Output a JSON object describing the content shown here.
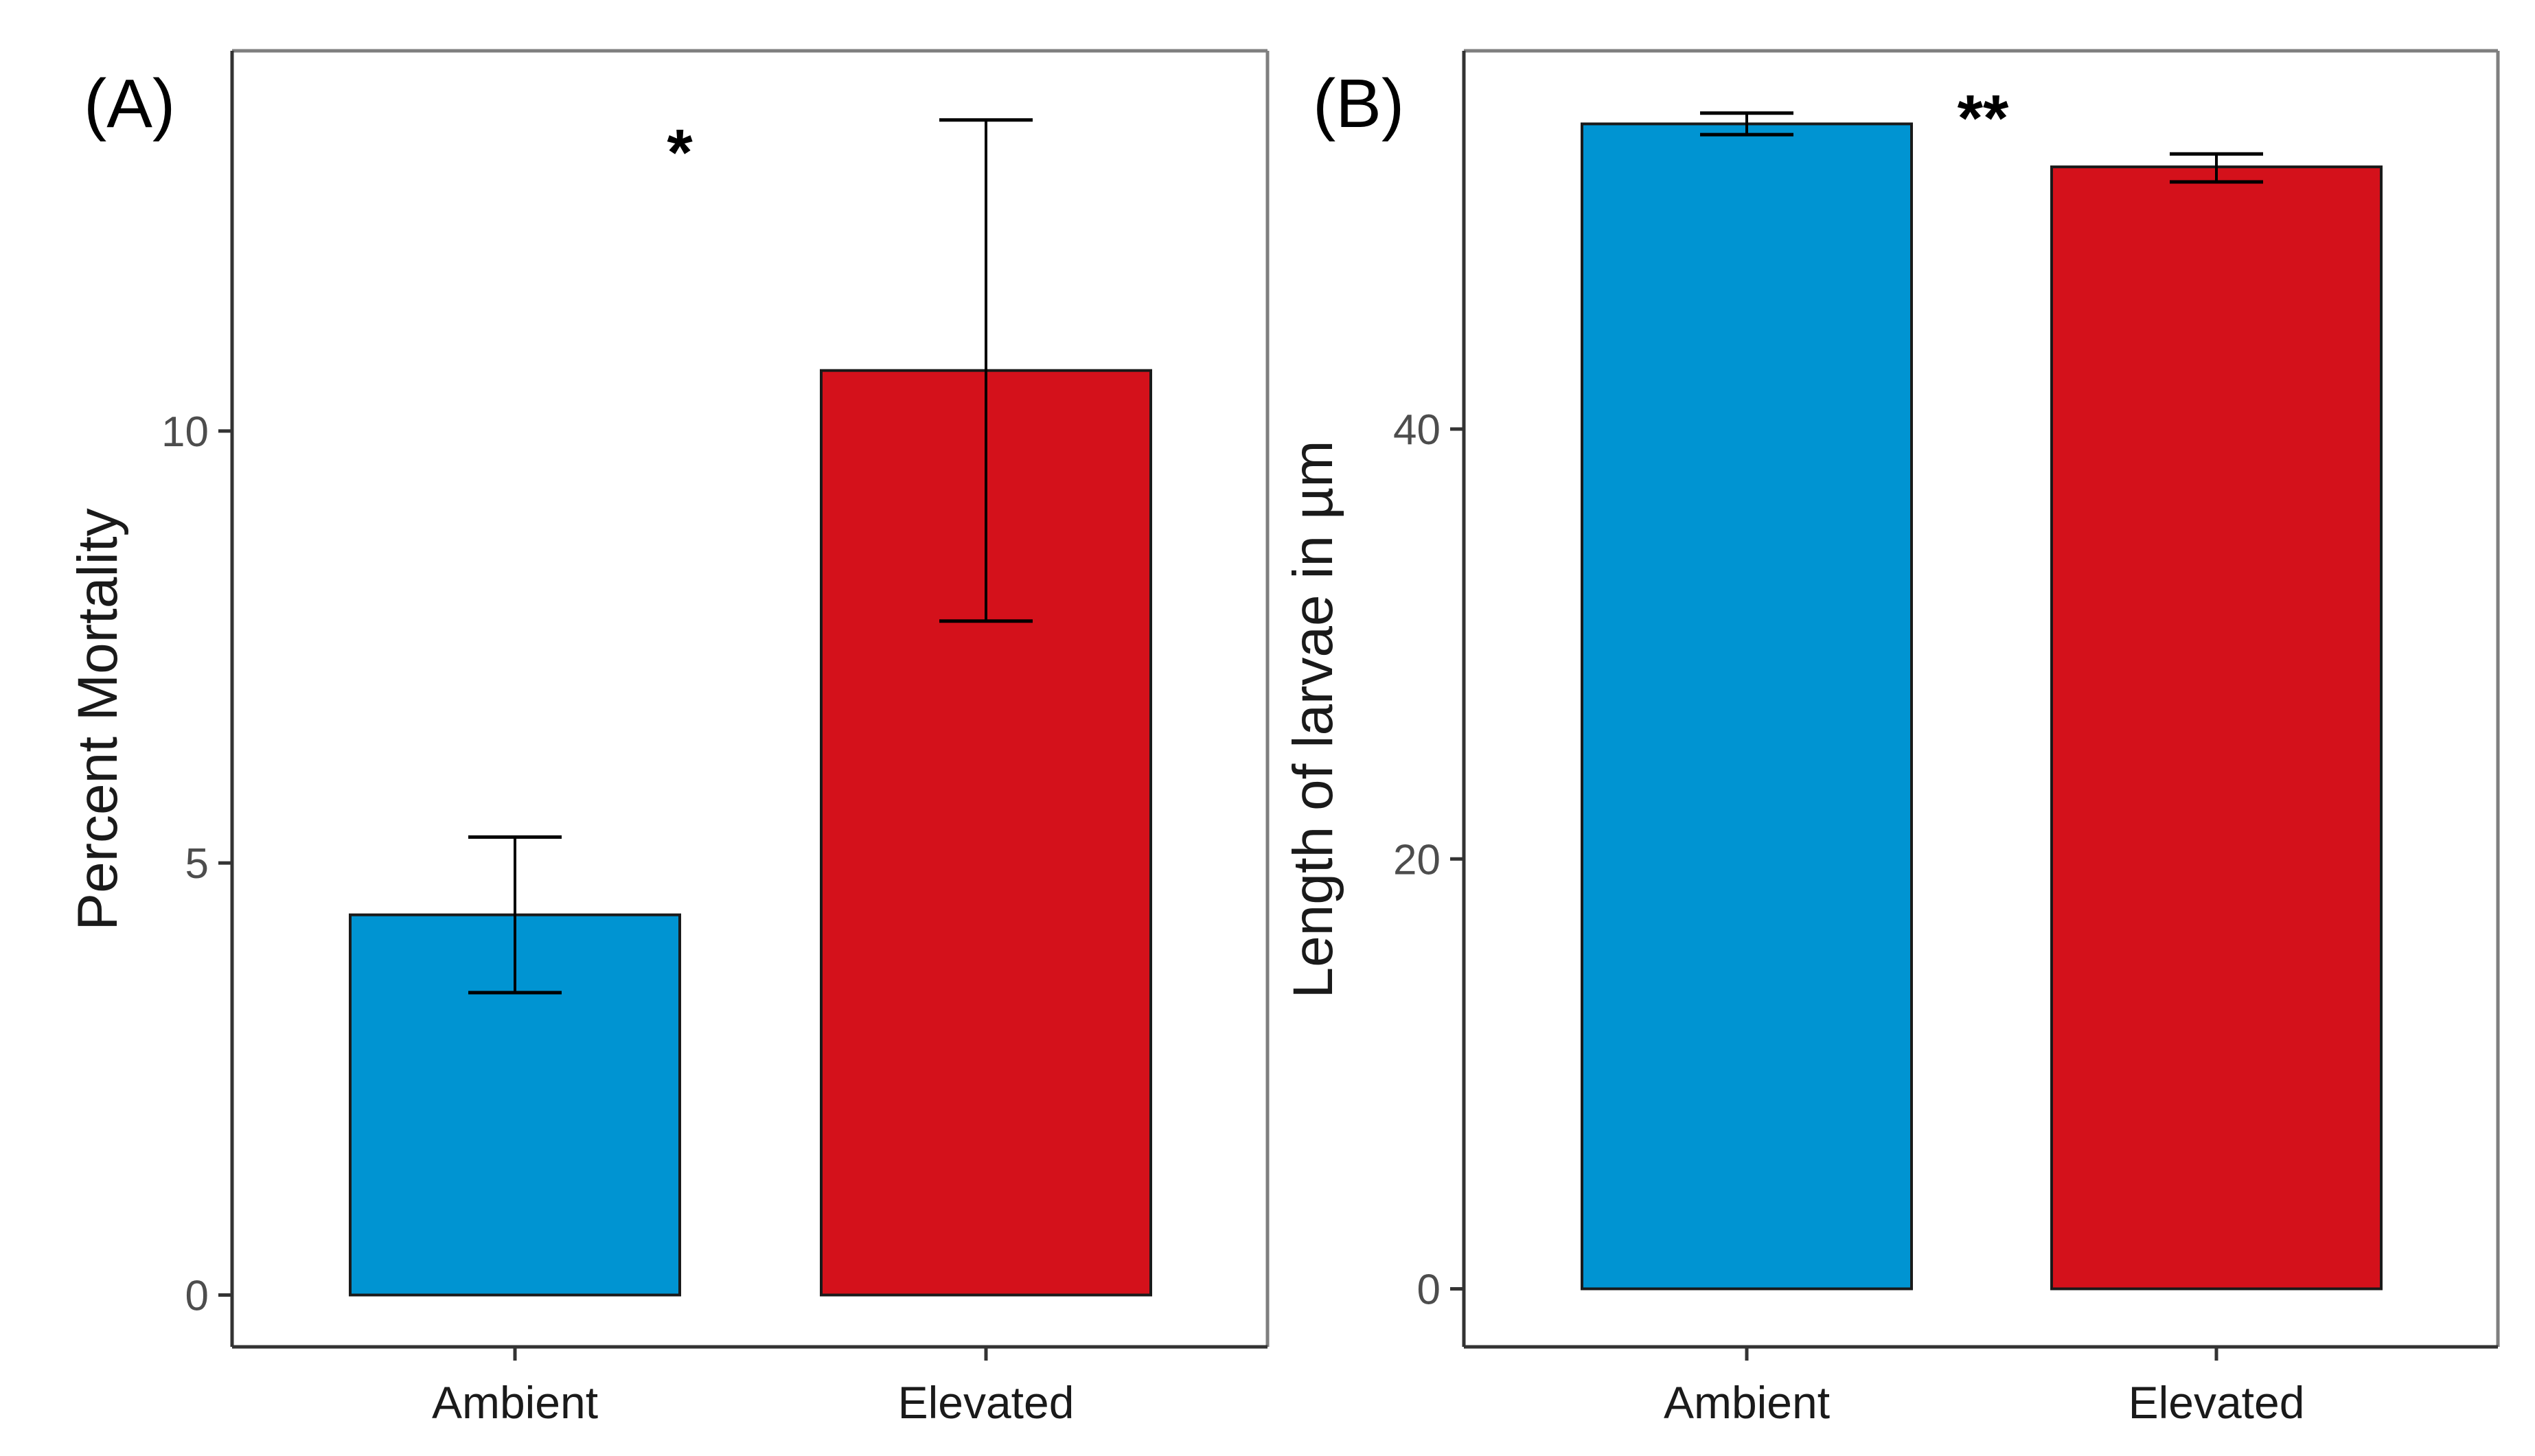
{
  "figure": {
    "background": "#ffffff"
  },
  "colors": {
    "ambient": "#0094d2",
    "elevated": "#d4111b",
    "frame": "#7f7f7f",
    "axis": "#333333",
    "tick_text": "#4d4d4d",
    "bar_outline": "#1a1a1a",
    "error_bar": "#000000"
  },
  "chart_data": [
    {
      "type": "bar",
      "panel_label": "(A)",
      "title": "",
      "xlabel": "",
      "ylabel": "Percent Mortality",
      "categories": [
        "Ambient",
        "Elevated"
      ],
      "values": [
        4.4,
        10.7
      ],
      "error_low": [
        3.5,
        7.8
      ],
      "error_high": [
        5.3,
        13.6
      ],
      "ylim": [
        -0.6,
        14.4
      ],
      "yticks": [
        0,
        5,
        10
      ],
      "ytick_labels": [
        "0",
        "5",
        "10"
      ],
      "grid": false,
      "significance": "*",
      "significance_position": "between bars, near top"
    },
    {
      "type": "bar",
      "panel_label": "(B)",
      "title": "",
      "xlabel": "",
      "ylabel": "Length of larvae in µm",
      "categories": [
        "Ambient",
        "Elevated"
      ],
      "values": [
        54.2,
        52.2
      ],
      "error_low": [
        53.7,
        51.5
      ],
      "error_high": [
        54.7,
        52.8
      ],
      "ylim": [
        -2.7,
        57.6
      ],
      "yticks": [
        0,
        20,
        40
      ],
      "ytick_labels": [
        "0",
        "20",
        "40"
      ],
      "grid": false,
      "significance": "**",
      "significance_position": "between bars, near top"
    }
  ]
}
